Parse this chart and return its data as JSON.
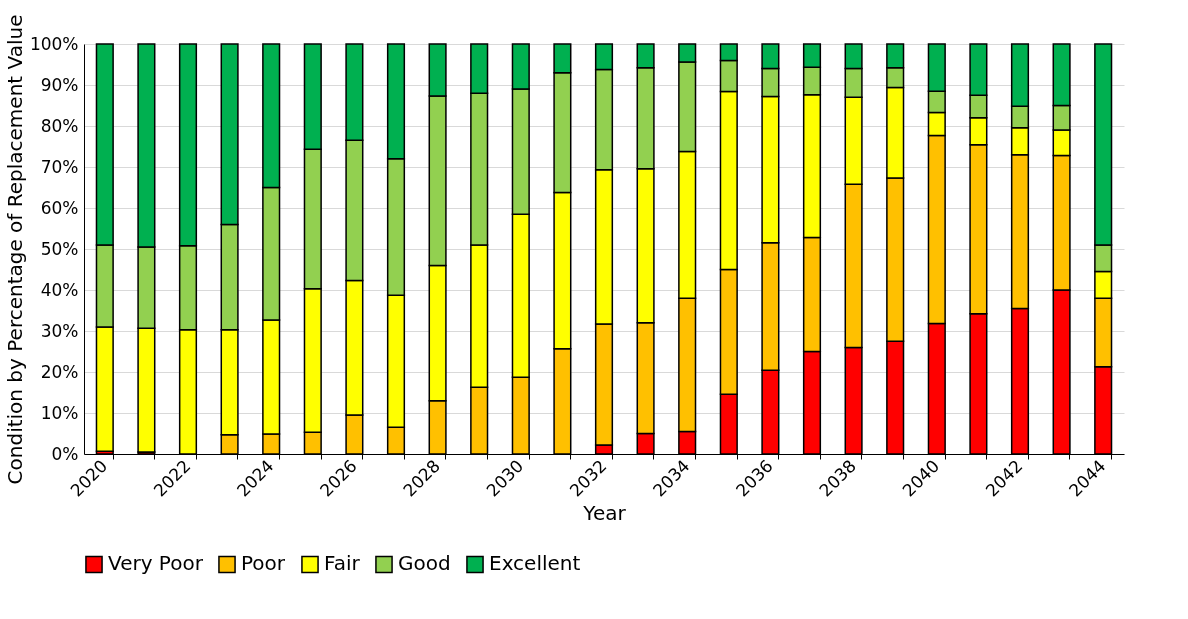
{
  "chart_data": {
    "type": "bar",
    "stacked": true,
    "xlabel": "Year",
    "ylabel": "Condition by Percentage of Replacement Value",
    "categories": [
      "2020",
      null,
      "2022",
      null,
      "2024",
      null,
      "2026",
      null,
      "2028",
      null,
      "2030",
      null,
      "2032",
      null,
      "2034",
      null,
      "2036",
      null,
      "2038",
      null,
      "2040",
      null,
      "2042",
      null,
      "2044"
    ],
    "series": [
      {
        "name": "Very Poor",
        "color": "#ff0000",
        "values": [
          0.7,
          0.5,
          0,
          0,
          0,
          0,
          0,
          0,
          0,
          0,
          0,
          null,
          2.2,
          5,
          5.5,
          14.6,
          20.4,
          25,
          26,
          27.5,
          31.8,
          34.2,
          35.5,
          40,
          21.3
        ]
      },
      {
        "name": "Poor",
        "color": "#ffc000",
        "values": [
          0,
          0,
          0,
          4.7,
          4.9,
          5.3,
          9.5,
          6.5,
          13,
          16.3,
          18.7,
          25.7,
          29.5,
          27,
          32.5,
          30.4,
          31.1,
          27.8,
          39.8,
          39.8,
          45.9,
          41.2,
          37.5,
          32.8,
          16.7
        ]
      },
      {
        "name": "Fair",
        "color": "#ffff00",
        "values": [
          30.3,
          30.2,
          30.3,
          25.6,
          27.8,
          35,
          32.8,
          32.2,
          33,
          34.7,
          39.8,
          38.1,
          37.6,
          37.6,
          35.8,
          43.4,
          35.7,
          34.8,
          21.2,
          22.1,
          5.6,
          6.6,
          6.6,
          6.2,
          6.5
        ]
      },
      {
        "name": "Good",
        "color": "#92d050",
        "values": [
          20,
          19.8,
          20.5,
          25.7,
          32.3,
          34,
          34.2,
          33.3,
          41.3,
          37,
          30.5,
          29.2,
          24.5,
          24.6,
          21.8,
          7.6,
          6.8,
          6.7,
          7,
          4.8,
          5.2,
          5.5,
          5.2,
          6,
          6.5
        ]
      },
      {
        "name": "Excellent",
        "color": "#00b050",
        "values": [
          49,
          49.5,
          49.2,
          44,
          35,
          25.7,
          23.5,
          28,
          12.7,
          12,
          11,
          7,
          6.2,
          5.8,
          4.4,
          4,
          6,
          5.7,
          6,
          5.8,
          11.5,
          12.5,
          15.2,
          15,
          49
        ]
      }
    ],
    "ylim": [
      0,
      100
    ],
    "yticks": [
      {
        "value": 0,
        "label": "0%"
      },
      {
        "value": 10,
        "label": "10%"
      },
      {
        "value": 20,
        "label": "20%"
      },
      {
        "value": 30,
        "label": "30%"
      },
      {
        "value": 40,
        "label": "40%"
      },
      {
        "value": 50,
        "label": "50%"
      },
      {
        "value": 60,
        "label": "60%"
      },
      {
        "value": 70,
        "label": "70%"
      },
      {
        "value": 80,
        "label": "80%"
      },
      {
        "value": 90,
        "label": "90%"
      },
      {
        "value": 100,
        "label": "100%"
      }
    ],
    "grid": "y",
    "legend": "bottom"
  }
}
